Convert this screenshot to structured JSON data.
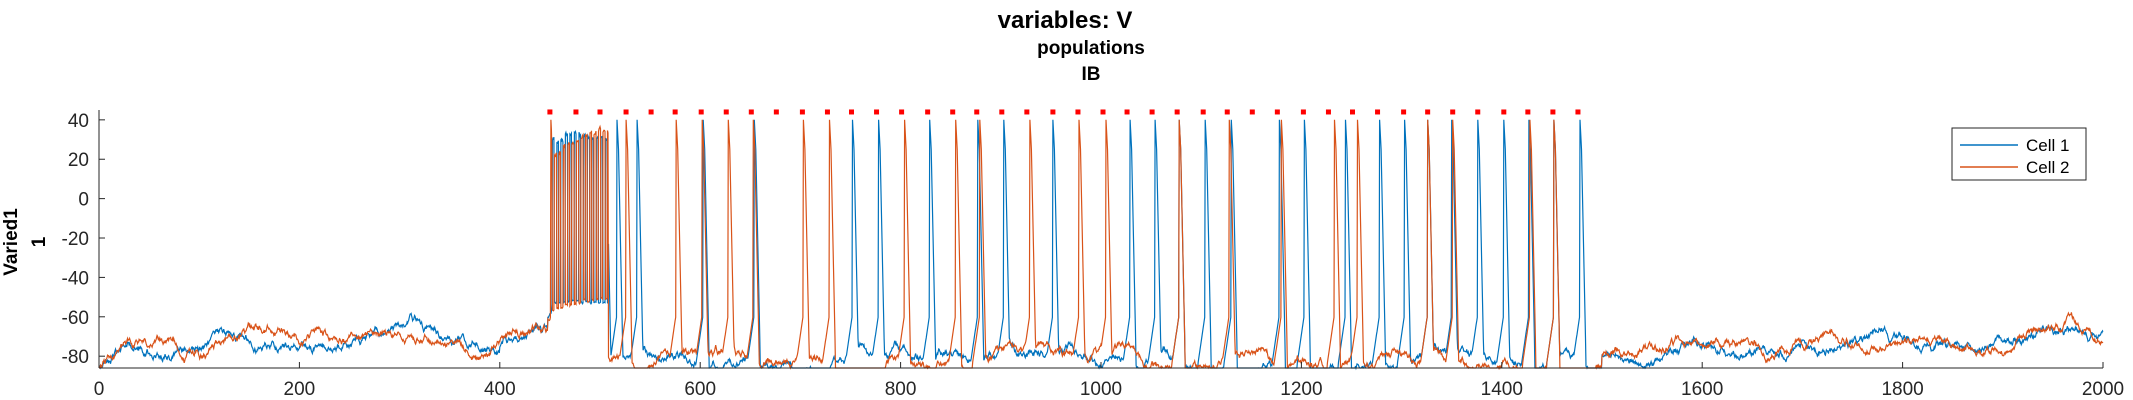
{
  "chart_data": {
    "type": "line",
    "title": "variables: V",
    "subtitle_lines": [
      "populations",
      "IB"
    ],
    "ylabel_lines": [
      "Varied1",
      "1"
    ],
    "xlim": [
      0,
      2000
    ],
    "ylim": [
      -86,
      45
    ],
    "x_ticks": [
      0,
      200,
      400,
      600,
      800,
      1000,
      1200,
      1400,
      1600,
      1800,
      2000
    ],
    "y_ticks": [
      40,
      20,
      0,
      -20,
      -40,
      -60,
      -80
    ],
    "grid": false,
    "legend_position": "top-right",
    "baseline": {
      "start": -86,
      "rest": -77,
      "end": -70
    },
    "burst": {
      "start": 450,
      "end": 508,
      "upper": 30,
      "lower": -53
    },
    "marker_y": 44,
    "marker_color": "#ff0000",
    "series": [
      {
        "name": "Cell 1",
        "color": "#0072bd",
        "spikes": [
          454,
          463,
          471,
          480,
          489,
          497,
          505,
          517,
          537,
          603,
          654,
          752,
          778,
          829,
          877,
          903,
          952,
          1029,
          1054,
          1078,
          1104,
          1130,
          1178,
          1203,
          1244,
          1278,
          1303,
          1326,
          1350,
          1376,
          1402,
          1427,
          1452,
          1478
        ]
      },
      {
        "name": "Cell 2",
        "color": "#d95319",
        "spikes": [
          451,
          460,
          468,
          477,
          486,
          494,
          502,
          526,
          576,
          602,
          628,
          653,
          703,
          729,
          804,
          855,
          879,
          929,
          978,
          1005,
          1078,
          1128,
          1180,
          1233,
          1256,
          1326,
          1351,
          1428,
          1452
        ]
      }
    ],
    "marker_times": [
      450,
      476,
      500,
      526,
      551,
      575,
      601,
      626,
      651,
      676,
      702,
      727,
      751,
      776,
      801,
      827,
      852,
      876,
      901,
      926,
      952,
      977,
      1002,
      1026,
      1051,
      1076,
      1102,
      1126,
      1151,
      1176,
      1202,
      1227,
      1251,
      1276,
      1302,
      1326,
      1351,
      1376,
      1402,
      1426,
      1451,
      1476
    ]
  }
}
